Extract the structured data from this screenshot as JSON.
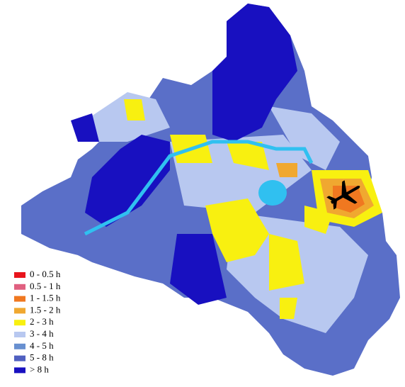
{
  "legend": {
    "items": [
      {
        "label": "0 - 0.5 h",
        "color": "#e8141c"
      },
      {
        "label": "0.5 - 1 h",
        "color": "#e06080"
      },
      {
        "label": "1 - 1.5 h",
        "color": "#f07820"
      },
      {
        "label": "1.5 - 2 h",
        "color": "#f0a830"
      },
      {
        "label": "2 - 3 h",
        "color": "#f8f010"
      },
      {
        "label": "3 - 4 h",
        "color": "#b8c8f0"
      },
      {
        "label": "4 - 5 h",
        "color": "#6890d0"
      },
      {
        "label": "5 - 8 h",
        "color": "#5060c0"
      },
      {
        "label": "> 8 h",
        "color": "#1810c0"
      }
    ]
  }
}
